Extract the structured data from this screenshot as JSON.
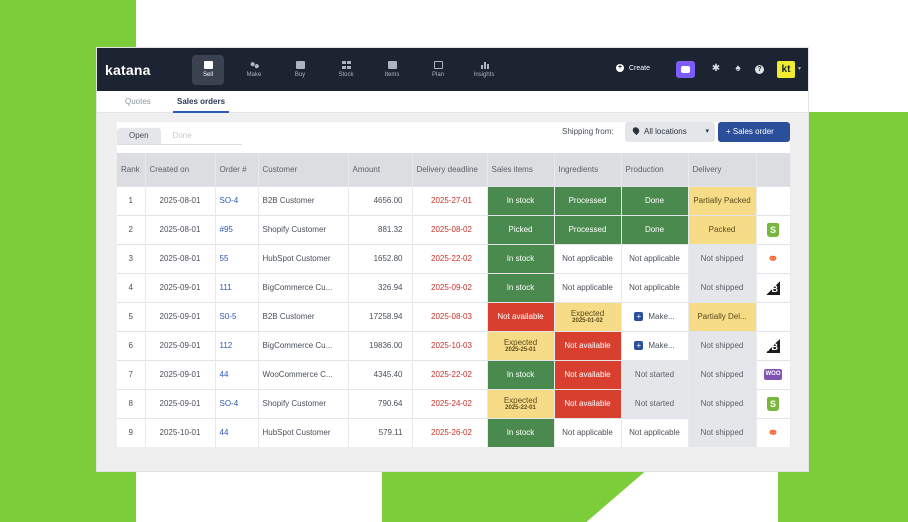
{
  "app": {
    "logo": "katana"
  },
  "nav": [
    {
      "label": "Sell",
      "icon": "sell-icon",
      "active": true
    },
    {
      "label": "Make",
      "icon": "make-icon"
    },
    {
      "label": "Buy",
      "icon": "buy-icon"
    },
    {
      "label": "Stock",
      "icon": "stock-icon"
    },
    {
      "label": "Items",
      "icon": "items-icon"
    },
    {
      "label": "Plan",
      "icon": "plan-icon"
    },
    {
      "label": "Insights",
      "icon": "insights-icon"
    }
  ],
  "header": {
    "create_label": "Create",
    "avatar_initials": "kt"
  },
  "subtabs": {
    "quotes": "Quotes",
    "sales_orders": "Sales orders"
  },
  "filters": {
    "status_open": "Open",
    "status_done": "Done",
    "shipping_from_label": "Shipping from:",
    "location_value": "All locations",
    "new_order_label": "Sales order"
  },
  "columns": [
    "Rank",
    "Created on",
    "Order #",
    "Customer",
    "Amount",
    "Delivery deadline",
    "Sales items",
    "Ingredients",
    "Production",
    "Delivery",
    ""
  ],
  "rows": [
    {
      "rank": "1",
      "created": "2025-08-01",
      "order": "SO-4",
      "customer": "B2B Customer",
      "amount": "4656.00",
      "deadline": "2025-27-01",
      "sales": "In stock",
      "sales_sub": "",
      "sales_status": "green",
      "ingredients": "Processed",
      "ingredients_sub": "",
      "ingredients_status": "green",
      "production": "Done",
      "production_status": "green",
      "delivery": "Partially Packed",
      "delivery_status": "yellow",
      "channel": ""
    },
    {
      "rank": "2",
      "created": "2025-08-01",
      "order": "#95",
      "customer": "Shopify Customer",
      "amount": "881.32",
      "deadline": "2025-08-02",
      "sales": "Picked",
      "sales_sub": "",
      "sales_status": "green",
      "ingredients": "Processed",
      "ingredients_sub": "",
      "ingredients_status": "green",
      "production": "Done",
      "production_status": "green",
      "delivery": "Packed",
      "delivery_status": "yellow",
      "channel": "shopify"
    },
    {
      "rank": "3",
      "created": "2025-08-01",
      "order": "55",
      "customer": "HubSpot Customer",
      "amount": "1652.80",
      "deadline": "2025-22-02",
      "sales": "In stock",
      "sales_sub": "",
      "sales_status": "green",
      "ingredients": "Not applicable",
      "ingredients_sub": "",
      "ingredients_status": "none",
      "production": "Not applicable",
      "production_status": "none",
      "delivery": "Not shipped",
      "delivery_status": "gray",
      "channel": "hubspot"
    },
    {
      "rank": "4",
      "created": "2025-09-01",
      "order": "111",
      "customer": "BigCommerce Cu...",
      "amount": "326.94",
      "deadline": "2025-09-02",
      "sales": "In stock",
      "sales_sub": "",
      "sales_status": "green",
      "ingredients": "Not applicable",
      "ingredients_sub": "",
      "ingredients_status": "none",
      "production": "Not applicable",
      "production_status": "none",
      "delivery": "Not shipped",
      "delivery_status": "gray",
      "channel": "bigcommerce"
    },
    {
      "rank": "5",
      "created": "2025-09-01",
      "order": "S0-5",
      "customer": "B2B Customer",
      "amount": "17258.94",
      "deadline": "2025-08-03",
      "sales": "Not available",
      "sales_sub": "",
      "sales_status": "red",
      "ingredients": "Expected",
      "ingredients_sub": "2025-01-02",
      "ingredients_status": "yellow",
      "production": "Make...",
      "production_status": "make",
      "delivery": "Partially Del...",
      "delivery_status": "yellow",
      "channel": ""
    },
    {
      "rank": "6",
      "created": "2025-09-01",
      "order": "112",
      "customer": "BigCommerce Cu...",
      "amount": "19836.00",
      "deadline": "2025-10-03",
      "sales": "Expected",
      "sales_sub": "2025-25-01",
      "sales_status": "yellow",
      "ingredients": "Not available",
      "ingredients_sub": "",
      "ingredients_status": "red",
      "production": "Make...",
      "production_status": "make",
      "delivery": "Not shipped",
      "delivery_status": "gray",
      "channel": "bigcommerce"
    },
    {
      "rank": "7",
      "created": "2025-09-01",
      "order": "44",
      "customer": "WooCommerce C...",
      "amount": "4345.40",
      "deadline": "2025-22-02",
      "sales": "In stock",
      "sales_sub": "",
      "sales_status": "green",
      "ingredients": "Not available",
      "ingredients_sub": "",
      "ingredients_status": "red",
      "production": "Not started",
      "production_status": "gray",
      "delivery": "Not shipped",
      "delivery_status": "gray",
      "channel": "woo"
    },
    {
      "rank": "8",
      "created": "2025-09-01",
      "order": "SO-4",
      "customer": "Shopify Customer",
      "amount": "790.64",
      "deadline": "2025-24-02",
      "sales": "Expected",
      "sales_sub": "2025-22-01",
      "sales_status": "yellow",
      "ingredients": "Not available",
      "ingredients_sub": "",
      "ingredients_status": "red",
      "production": "Not started",
      "production_status": "gray",
      "delivery": "Not shipped",
      "delivery_status": "gray",
      "channel": "shopify"
    },
    {
      "rank": "9",
      "created": "2025-10-01",
      "order": "44",
      "customer": "HubSpot Customer",
      "amount": "579.11",
      "deadline": "2025-26-02",
      "sales": "In stock",
      "sales_sub": "",
      "sales_status": "green",
      "ingredients": "Not applicable",
      "ingredients_sub": "",
      "ingredients_status": "none",
      "production": "Not applicable",
      "production_status": "none",
      "delivery": "Not shipped",
      "delivery_status": "gray",
      "channel": "hubspot"
    }
  ],
  "channels": {
    "shopify": "S",
    "hubspot": "⚭",
    "bigcommerce": "B",
    "woo": "WOO"
  },
  "colors": {
    "accent": "#2b4f9b",
    "green": "#4a8a4f",
    "yellow": "#f7dc87",
    "red": "#d93f2f",
    "brand_green": "#7ccd3a"
  }
}
